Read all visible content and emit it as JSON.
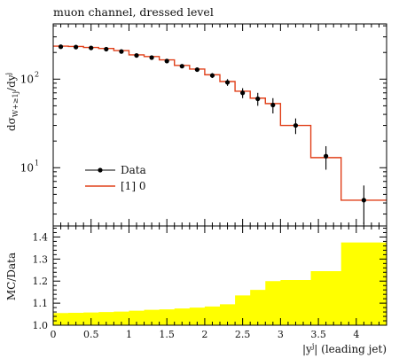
{
  "title": "muon channel, dressed level",
  "top_panel": {
    "ylabel": "dσW+≥1j/dyj",
    "ytick_labels": [
      "10^1",
      "10^2"
    ],
    "legend": {
      "data_label": "Data",
      "mc_label": "[1] 0"
    }
  },
  "bottom_panel": {
    "ylabel": "MC/Data",
    "ytick_labels": [
      "1.0",
      "1.1",
      "1.2",
      "1.3",
      "1.4"
    ],
    "xtick_labels": [
      "0",
      "0.5",
      "1",
      "1.5",
      "2",
      "2.5",
      "3",
      "3.5",
      "4"
    ],
    "xlabel": "|yj| (leading jet)"
  },
  "colors": {
    "mc_line": "#e0401a",
    "data_marker": "#000000",
    "band": "#ffff00"
  },
  "chart_data": [
    {
      "type": "line",
      "title": "muon channel, dressed level",
      "xlabel": "|y^j| (leading jet)",
      "ylabel": "dσ_{W+≥1j}/dy^j",
      "yscale": "log",
      "xlim": [
        0,
        4.4
      ],
      "ylim": [
        2.2,
        420
      ],
      "legend": "left",
      "series": [
        {
          "name": "Data",
          "style": "points-with-errorbars",
          "x": [
            0.1,
            0.3,
            0.5,
            0.7,
            0.9,
            1.1,
            1.3,
            1.5,
            1.7,
            1.9,
            2.1,
            2.3,
            2.5,
            2.7,
            2.9,
            3.2,
            3.6,
            4.1
          ],
          "y": [
            232,
            230,
            225,
            218,
            205,
            185,
            175,
            160,
            140,
            128,
            110,
            92,
            70,
            60,
            51,
            30,
            13.5,
            4.3
          ],
          "yerr": [
            6,
            6,
            6,
            6,
            6,
            6,
            6,
            6,
            7,
            7,
            7,
            8,
            9,
            10,
            10,
            6,
            4,
            2
          ]
        },
        {
          "name": "[1] 0",
          "style": "step",
          "bin_edges": [
            0,
            0.2,
            0.4,
            0.6,
            0.8,
            1.0,
            1.2,
            1.4,
            1.6,
            1.8,
            2.0,
            2.2,
            2.4,
            2.6,
            2.8,
            3.0,
            3.4,
            3.8,
            4.4
          ],
          "values": [
            236,
            234,
            228,
            222,
            210,
            188,
            180,
            165,
            143,
            130,
            112,
            94,
            73,
            61,
            53,
            30,
            13,
            4.3
          ]
        }
      ]
    },
    {
      "type": "area",
      "ylabel": "MC/Data",
      "xlabel": "|y^j| (leading jet)",
      "xlim": [
        0,
        4.4
      ],
      "ylim": [
        1.0,
        1.45
      ],
      "series": [
        {
          "name": "",
          "style": "step-band",
          "bin_edges": [
            0,
            0.2,
            0.4,
            0.6,
            0.8,
            1.0,
            1.2,
            1.4,
            1.6,
            1.8,
            2.0,
            2.2,
            2.4,
            2.6,
            2.8,
            3.0,
            3.4,
            3.8,
            4.4
          ],
          "lower": [
            1.0,
            1.0,
            1.0,
            1.0,
            1.0,
            1.0,
            1.0,
            1.0,
            1.0,
            1.0,
            1.0,
            1.0,
            1.0,
            1.0,
            1.0,
            1.0,
            1.0,
            1.0
          ],
          "upper": [
            1.055,
            1.056,
            1.058,
            1.06,
            1.062,
            1.066,
            1.07,
            1.072,
            1.076,
            1.08,
            1.085,
            1.095,
            1.135,
            1.16,
            1.2,
            1.205,
            1.245,
            1.375
          ]
        }
      ]
    }
  ]
}
